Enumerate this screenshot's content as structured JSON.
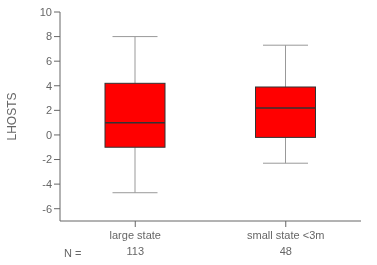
{
  "chart_data": {
    "type": "box",
    "categories": [
      "large state",
      "small state <3m"
    ],
    "whisker_low": [
      -4.7,
      -2.3
    ],
    "q1": [
      -1.0,
      -0.2
    ],
    "median": [
      1.0,
      2.2
    ],
    "q3": [
      4.2,
      3.9
    ],
    "whisker_high": [
      8.0,
      7.3
    ],
    "n": [
      113,
      48
    ],
    "annotation": "N =",
    "ylabel": "LHOSTS",
    "color": "#ff0000",
    "ylim": [
      -7,
      10
    ],
    "yticks": [
      -6,
      -4,
      -2,
      0,
      2,
      4,
      6,
      8,
      10
    ],
    "grid": false
  }
}
